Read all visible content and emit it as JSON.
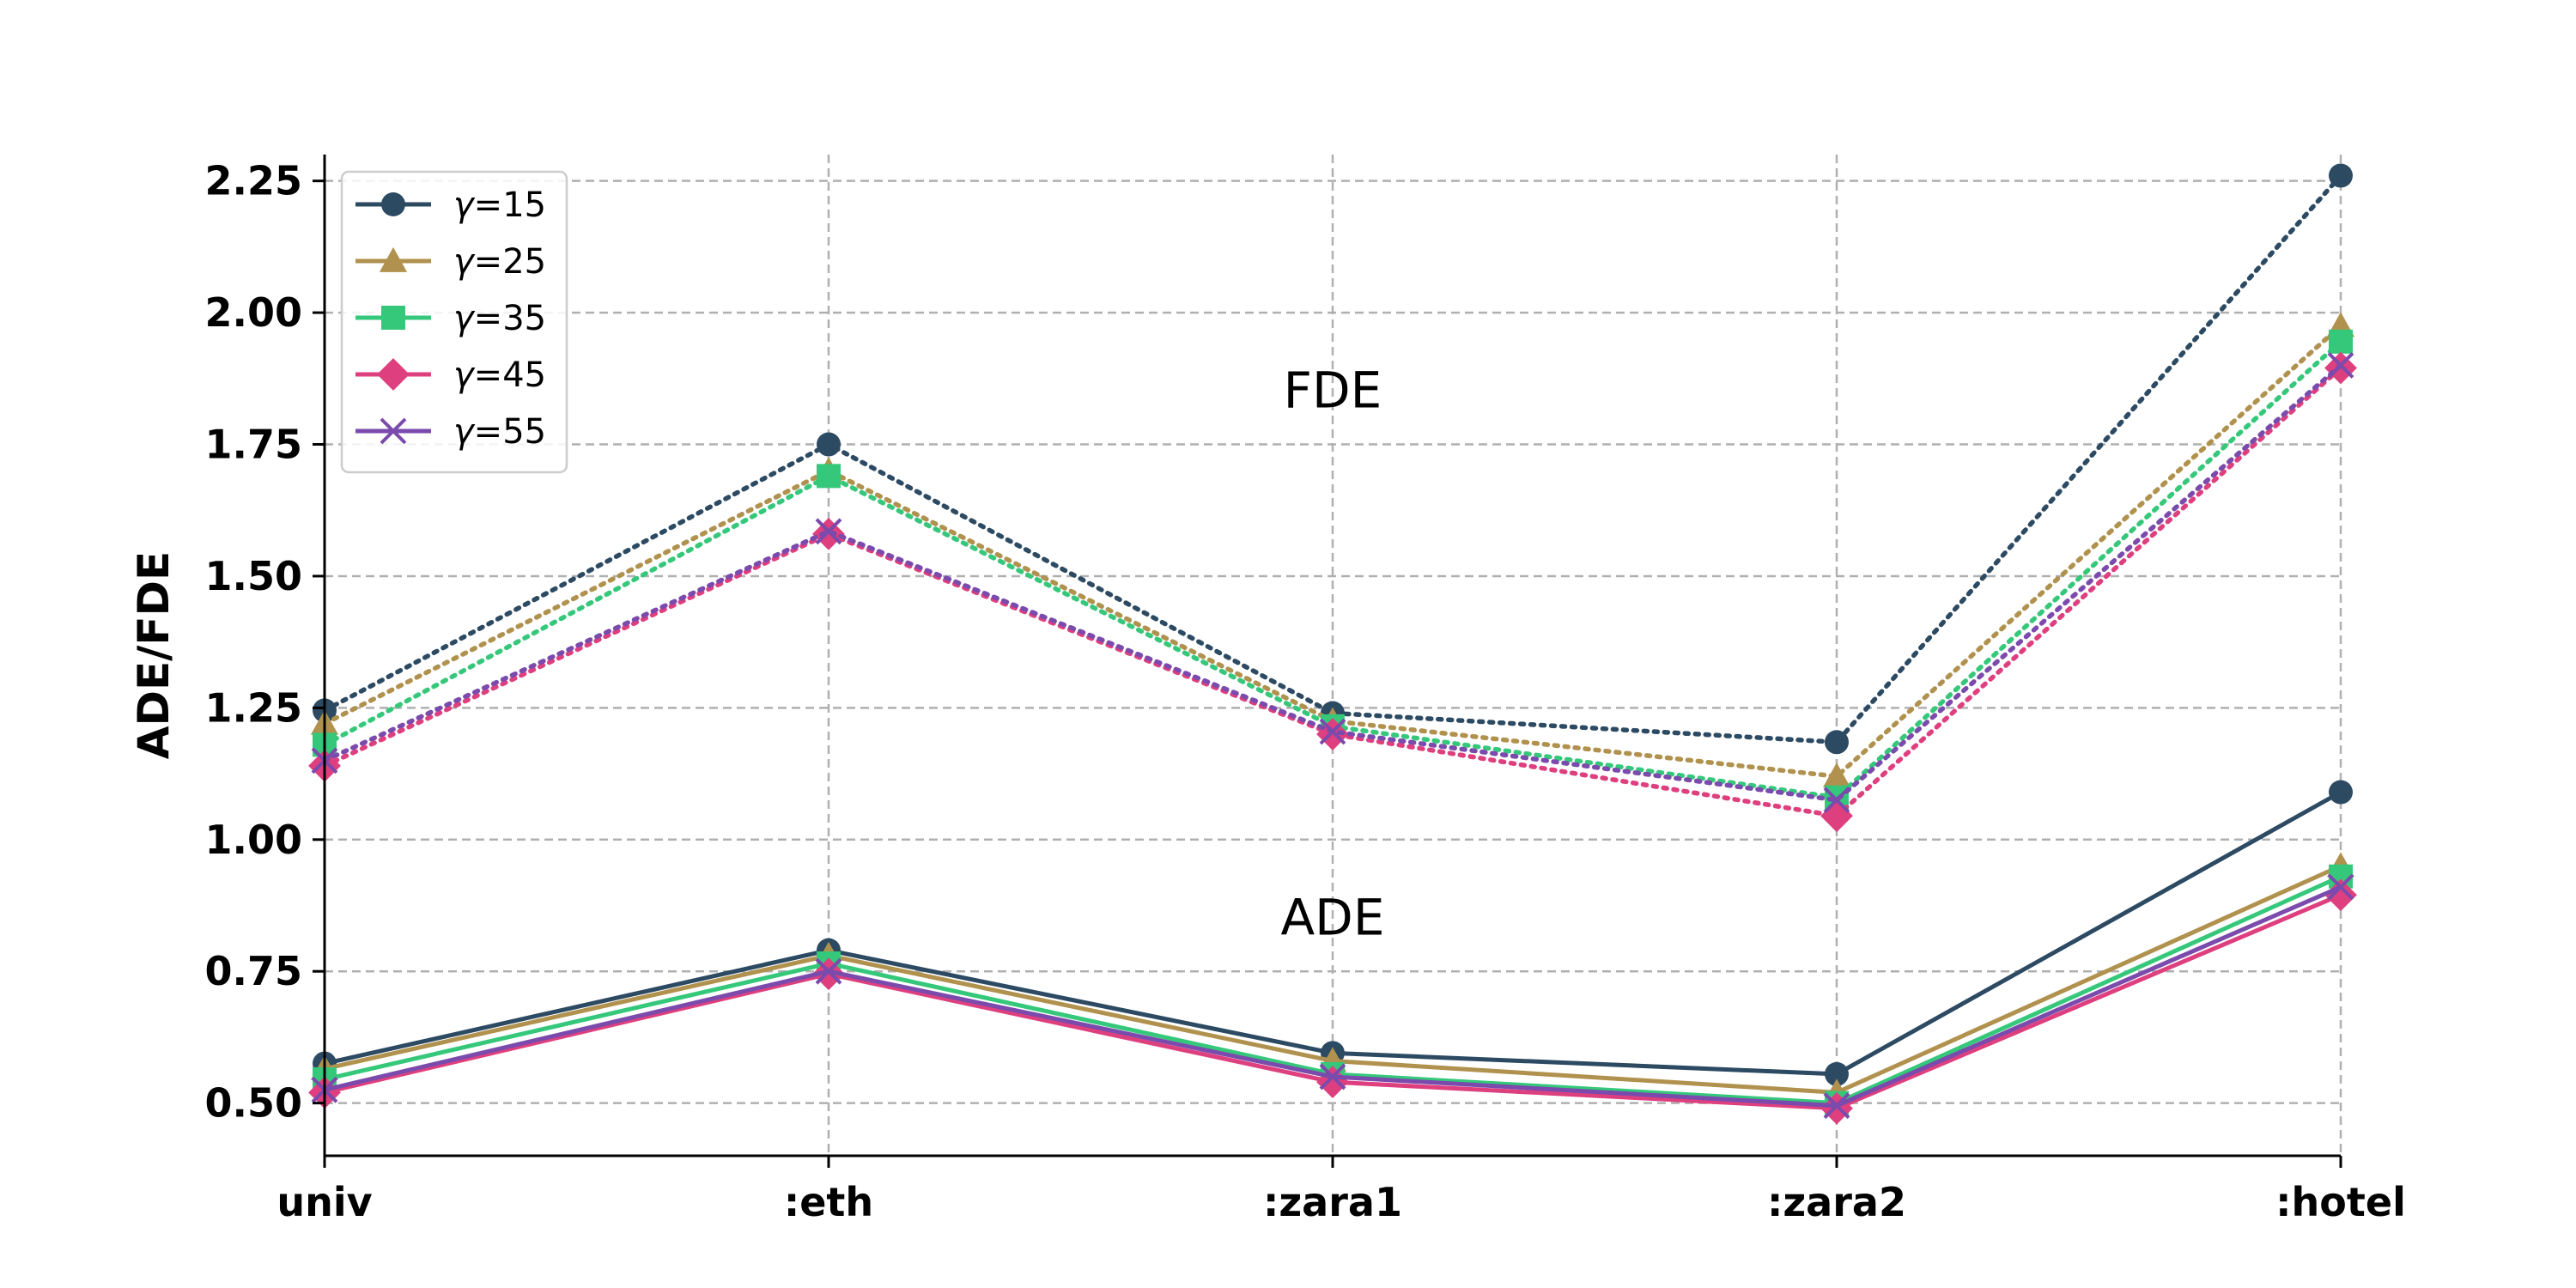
{
  "chart_data": {
    "type": "line",
    "title": "",
    "xlabel": "",
    "ylabel": "ADE/FDE",
    "categories": [
      "univ",
      ":eth",
      ":zara1",
      ":zara2",
      ":hotel"
    ],
    "ylim": [
      0.4,
      2.3
    ],
    "yticks": [
      0.5,
      0.75,
      1.0,
      1.25,
      1.5,
      1.75,
      2.0,
      2.25
    ],
    "ytick_labels": [
      "0.50",
      "0.75",
      "1.00",
      "1.25",
      "1.50",
      "1.75",
      "2.00",
      "2.25"
    ],
    "grid": true,
    "legend_position": "top-left",
    "annotations": [
      {
        "text": "FDE",
        "x": 2.0,
        "y": 1.82
      },
      {
        "text": "ADE",
        "x": 2.0,
        "y": 0.82
      }
    ],
    "series": [
      {
        "name": "γ=15",
        "gamma": "15",
        "color": "#2d4a63",
        "marker": "circle",
        "ade": [
          0.575,
          0.79,
          0.595,
          0.555,
          1.09
        ],
        "fde": [
          1.245,
          1.75,
          1.24,
          1.185,
          2.26
        ]
      },
      {
        "name": "γ=25",
        "gamma": "25",
        "color": "#b0924e",
        "marker": "triangle",
        "ade": [
          0.565,
          0.78,
          0.58,
          0.52,
          0.95
        ],
        "fde": [
          1.22,
          1.7,
          1.225,
          1.12,
          1.975
        ]
      },
      {
        "name": "γ=35",
        "gamma": "35",
        "color": "#35c87a",
        "marker": "square",
        "ade": [
          0.545,
          0.765,
          0.555,
          0.5,
          0.93
        ],
        "fde": [
          1.18,
          1.69,
          1.215,
          1.08,
          1.945
        ]
      },
      {
        "name": "γ=45",
        "gamma": "45",
        "color": "#de3f7e",
        "marker": "diamond",
        "ade": [
          0.52,
          0.745,
          0.54,
          0.49,
          0.895
        ],
        "fde": [
          1.14,
          1.58,
          1.2,
          1.045,
          1.895
        ]
      },
      {
        "name": "γ=55",
        "gamma": "55",
        "color": "#7b4aad",
        "marker": "x",
        "ade": [
          0.525,
          0.75,
          0.55,
          0.495,
          0.91
        ],
        "fde": [
          1.15,
          1.585,
          1.205,
          1.075,
          1.9
        ]
      }
    ]
  }
}
